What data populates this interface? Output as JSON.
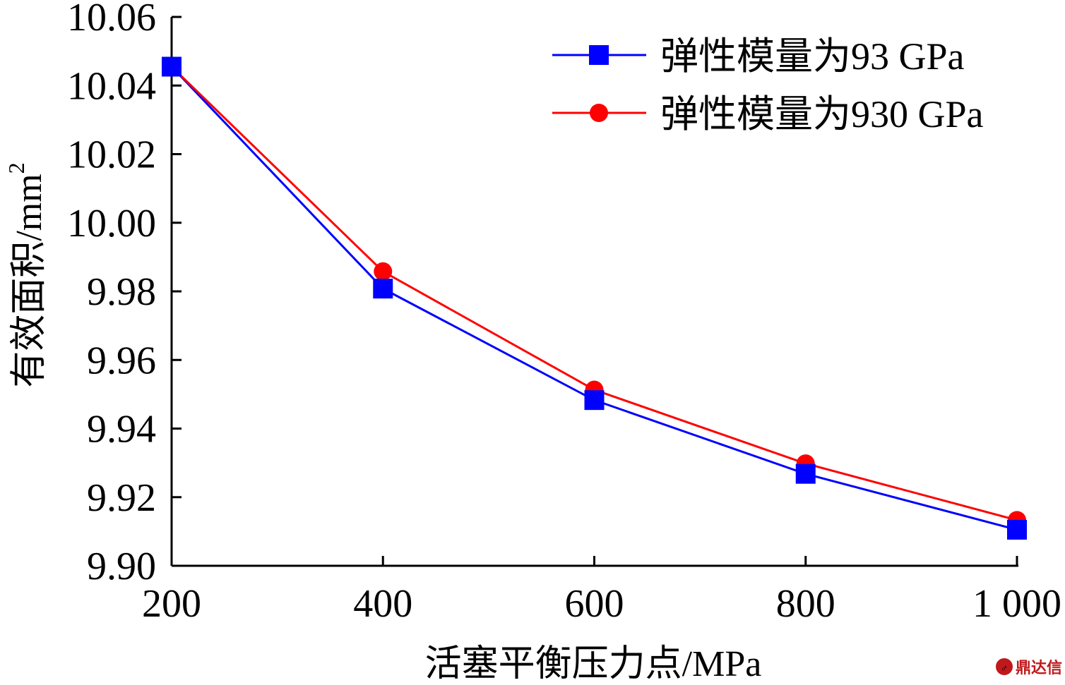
{
  "chart_data": {
    "type": "line",
    "x": [
      200,
      400,
      600,
      800,
      1000
    ],
    "series": [
      {
        "name": "弹性模量为93 GPa",
        "values": [
          10.0455,
          9.9808,
          9.9483,
          9.9268,
          9.9105
        ],
        "color": "#0000ff",
        "marker": "square"
      },
      {
        "name": "弹性模量为930 GPa",
        "values": [
          10.0455,
          9.9858,
          9.9513,
          9.9298,
          9.9133
        ],
        "color": "#ff0000",
        "marker": "circle"
      }
    ],
    "xlabel": "活塞平衡压力点/MPa",
    "ylabel": "有效面积/mm",
    "ylabel_superscript": "2",
    "xlim": [
      200,
      1000
    ],
    "ylim": [
      9.9,
      10.06
    ],
    "xticks": [
      200,
      400,
      600,
      800,
      1000
    ],
    "xtick_labels": [
      "200",
      "400",
      "600",
      "800",
      "1 000"
    ],
    "yticks": [
      9.9,
      9.92,
      9.94,
      9.96,
      9.98,
      10.0,
      10.02,
      10.04,
      10.06
    ],
    "ytick_labels": [
      "9.90",
      "9.92",
      "9.94",
      "9.96",
      "9.98",
      "10.00",
      "10.02",
      "10.04",
      "10.06"
    ],
    "grid": false,
    "legend_position": "top-right"
  },
  "watermark": {
    "text": "鼎达信",
    "icon": "logo-icon",
    "color": "#c0191c"
  }
}
